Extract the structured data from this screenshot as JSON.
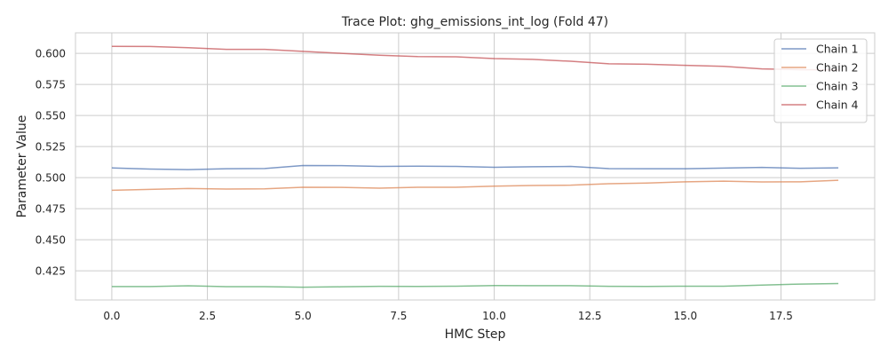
{
  "chart_data": {
    "type": "line",
    "title": "Trace Plot: ghg_emissions_int_log (Fold 47)",
    "xlabel": "HMC Step",
    "ylabel": "Parameter Value",
    "xlim": [
      -0.95,
      19.95
    ],
    "ylim": [
      0.4015,
      0.6165
    ],
    "x_ticks": [
      0.0,
      2.5,
      5.0,
      7.5,
      10.0,
      12.5,
      15.0,
      17.5
    ],
    "x_tick_labels": [
      "0.0",
      "2.5",
      "5.0",
      "7.5",
      "10.0",
      "12.5",
      "15.0",
      "17.5"
    ],
    "y_ticks": [
      0.425,
      0.45,
      0.475,
      0.5,
      0.525,
      0.55,
      0.575,
      0.6
    ],
    "y_tick_labels": [
      "0.425",
      "0.450",
      "0.475",
      "0.500",
      "0.525",
      "0.550",
      "0.575",
      "0.600"
    ],
    "grid": true,
    "legend_position": "top-right",
    "x": [
      0,
      1,
      2,
      3,
      4,
      5,
      6,
      7,
      8,
      9,
      10,
      11,
      12,
      13,
      14,
      15,
      16,
      17,
      18,
      19
    ],
    "series": [
      {
        "name": "Chain 1",
        "color": "#4c72b0",
        "values": [
          0.5078,
          0.5069,
          0.5064,
          0.5071,
          0.5073,
          0.5097,
          0.5096,
          0.509,
          0.5092,
          0.509,
          0.5083,
          0.5087,
          0.509,
          0.5072,
          0.5071,
          0.5071,
          0.5077,
          0.5082,
          0.5075,
          0.5078
        ]
      },
      {
        "name": "Chain 2",
        "color": "#dd8452",
        "values": [
          0.4898,
          0.4905,
          0.4912,
          0.4908,
          0.491,
          0.4922,
          0.4921,
          0.4915,
          0.4922,
          0.4922,
          0.4931,
          0.4936,
          0.4939,
          0.4951,
          0.4956,
          0.4966,
          0.4971,
          0.4965,
          0.4966,
          0.4978
        ]
      },
      {
        "name": "Chain 3",
        "color": "#55a868",
        "values": [
          0.4123,
          0.4123,
          0.4129,
          0.4122,
          0.4122,
          0.4118,
          0.4121,
          0.4125,
          0.4124,
          0.4126,
          0.4131,
          0.413,
          0.413,
          0.4125,
          0.4124,
          0.4126,
          0.4126,
          0.4135,
          0.4143,
          0.4147
        ]
      },
      {
        "name": "Chain 4",
        "color": "#c44e52",
        "values": [
          0.6056,
          0.6055,
          0.6045,
          0.6032,
          0.6032,
          0.6016,
          0.6,
          0.5985,
          0.5974,
          0.5972,
          0.5958,
          0.5952,
          0.5936,
          0.5916,
          0.5912,
          0.5903,
          0.5895,
          0.5875,
          0.5869,
          0.5866
        ]
      }
    ]
  }
}
